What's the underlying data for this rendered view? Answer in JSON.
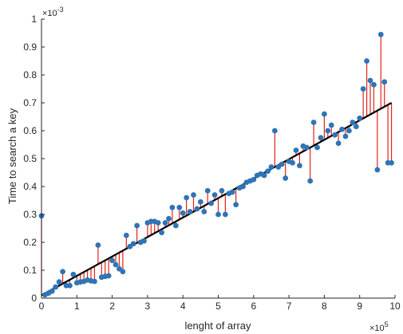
{
  "chart_data": {
    "type": "scatter",
    "title": "",
    "xlabel": "lenght of array",
    "ylabel": "Time to search a key",
    "x_exponent_label": "×10",
    "x_exponent_power": "5",
    "y_exponent_label": "×10",
    "y_exponent_power": "-3",
    "xlim": [
      0,
      10
    ],
    "ylim": [
      0,
      1
    ],
    "x_ticks": [
      "0",
      "1",
      "2",
      "3",
      "4",
      "5",
      "6",
      "7",
      "8",
      "9",
      "10"
    ],
    "y_ticks": [
      "0",
      "0.1",
      "0.2",
      "0.3",
      "0.4",
      "0.5",
      "0.6",
      "0.7",
      "0.8",
      "0.9",
      "1"
    ],
    "grid": false,
    "fit_line": {
      "x": [
        0,
        9.9
      ],
      "y": [
        0.01,
        0.7
      ]
    },
    "points": [
      {
        "x": 0.0,
        "y": 0.295
      },
      {
        "x": 0.1,
        "y": 0.012
      },
      {
        "x": 0.2,
        "y": 0.018
      },
      {
        "x": 0.3,
        "y": 0.025
      },
      {
        "x": 0.4,
        "y": 0.04
      },
      {
        "x": 0.5,
        "y": 0.058
      },
      {
        "x": 0.6,
        "y": 0.095
      },
      {
        "x": 0.7,
        "y": 0.045
      },
      {
        "x": 0.8,
        "y": 0.045
      },
      {
        "x": 0.9,
        "y": 0.085
      },
      {
        "x": 1.0,
        "y": 0.055
      },
      {
        "x": 1.1,
        "y": 0.058
      },
      {
        "x": 1.2,
        "y": 0.06
      },
      {
        "x": 1.3,
        "y": 0.065
      },
      {
        "x": 1.4,
        "y": 0.062
      },
      {
        "x": 1.5,
        "y": 0.06
      },
      {
        "x": 1.6,
        "y": 0.19
      },
      {
        "x": 1.7,
        "y": 0.075
      },
      {
        "x": 1.8,
        "y": 0.078
      },
      {
        "x": 1.9,
        "y": 0.08
      },
      {
        "x": 2.0,
        "y": 0.135
      },
      {
        "x": 2.1,
        "y": 0.12
      },
      {
        "x": 2.2,
        "y": 0.105
      },
      {
        "x": 2.3,
        "y": 0.095
      },
      {
        "x": 2.4,
        "y": 0.225
      },
      {
        "x": 2.5,
        "y": 0.185
      },
      {
        "x": 2.6,
        "y": 0.195
      },
      {
        "x": 2.7,
        "y": 0.26
      },
      {
        "x": 2.8,
        "y": 0.2
      },
      {
        "x": 2.9,
        "y": 0.205
      },
      {
        "x": 3.0,
        "y": 0.27
      },
      {
        "x": 3.1,
        "y": 0.275
      },
      {
        "x": 3.2,
        "y": 0.275
      },
      {
        "x": 3.3,
        "y": 0.27
      },
      {
        "x": 3.4,
        "y": 0.235
      },
      {
        "x": 3.5,
        "y": 0.27
      },
      {
        "x": 3.6,
        "y": 0.285
      },
      {
        "x": 3.7,
        "y": 0.325
      },
      {
        "x": 3.8,
        "y": 0.26
      },
      {
        "x": 3.9,
        "y": 0.325
      },
      {
        "x": 4.0,
        "y": 0.305
      },
      {
        "x": 4.1,
        "y": 0.36
      },
      {
        "x": 4.2,
        "y": 0.31
      },
      {
        "x": 4.3,
        "y": 0.37
      },
      {
        "x": 4.4,
        "y": 0.32
      },
      {
        "x": 4.5,
        "y": 0.345
      },
      {
        "x": 4.6,
        "y": 0.31
      },
      {
        "x": 4.7,
        "y": 0.385
      },
      {
        "x": 4.8,
        "y": 0.34
      },
      {
        "x": 4.9,
        "y": 0.37
      },
      {
        "x": 5.0,
        "y": 0.3
      },
      {
        "x": 5.1,
        "y": 0.385
      },
      {
        "x": 5.2,
        "y": 0.3
      },
      {
        "x": 5.3,
        "y": 0.375
      },
      {
        "x": 5.4,
        "y": 0.38
      },
      {
        "x": 5.5,
        "y": 0.335
      },
      {
        "x": 5.6,
        "y": 0.395
      },
      {
        "x": 5.7,
        "y": 0.4
      },
      {
        "x": 5.8,
        "y": 0.415
      },
      {
        "x": 5.9,
        "y": 0.42
      },
      {
        "x": 6.0,
        "y": 0.425
      },
      {
        "x": 6.1,
        "y": 0.44
      },
      {
        "x": 6.2,
        "y": 0.445
      },
      {
        "x": 6.3,
        "y": 0.44
      },
      {
        "x": 6.4,
        "y": 0.455
      },
      {
        "x": 6.5,
        "y": 0.47
      },
      {
        "x": 6.6,
        "y": 0.6
      },
      {
        "x": 6.7,
        "y": 0.47
      },
      {
        "x": 6.8,
        "y": 0.48
      },
      {
        "x": 6.9,
        "y": 0.43
      },
      {
        "x": 7.0,
        "y": 0.49
      },
      {
        "x": 7.1,
        "y": 0.485
      },
      {
        "x": 7.2,
        "y": 0.53
      },
      {
        "x": 7.3,
        "y": 0.475
      },
      {
        "x": 7.4,
        "y": 0.545
      },
      {
        "x": 7.5,
        "y": 0.54
      },
      {
        "x": 7.6,
        "y": 0.42
      },
      {
        "x": 7.7,
        "y": 0.63
      },
      {
        "x": 7.8,
        "y": 0.54
      },
      {
        "x": 7.9,
        "y": 0.575
      },
      {
        "x": 8.0,
        "y": 0.66
      },
      {
        "x": 8.1,
        "y": 0.6
      },
      {
        "x": 8.2,
        "y": 0.62
      },
      {
        "x": 8.3,
        "y": 0.585
      },
      {
        "x": 8.4,
        "y": 0.555
      },
      {
        "x": 8.5,
        "y": 0.605
      },
      {
        "x": 8.6,
        "y": 0.58
      },
      {
        "x": 8.7,
        "y": 0.6
      },
      {
        "x": 8.8,
        "y": 0.63
      },
      {
        "x": 8.9,
        "y": 0.615
      },
      {
        "x": 9.0,
        "y": 0.645
      },
      {
        "x": 9.1,
        "y": 0.75
      },
      {
        "x": 9.2,
        "y": 0.85
      },
      {
        "x": 9.3,
        "y": 0.78
      },
      {
        "x": 9.4,
        "y": 0.765
      },
      {
        "x": 9.5,
        "y": 0.46
      },
      {
        "x": 9.6,
        "y": 0.945
      },
      {
        "x": 9.7,
        "y": 0.775
      },
      {
        "x": 9.8,
        "y": 0.485
      },
      {
        "x": 9.9,
        "y": 0.485
      }
    ],
    "colors": {
      "points": "#2e74b6",
      "stems": "#e2231a",
      "fit": "#000000",
      "axis": "#262626"
    }
  }
}
